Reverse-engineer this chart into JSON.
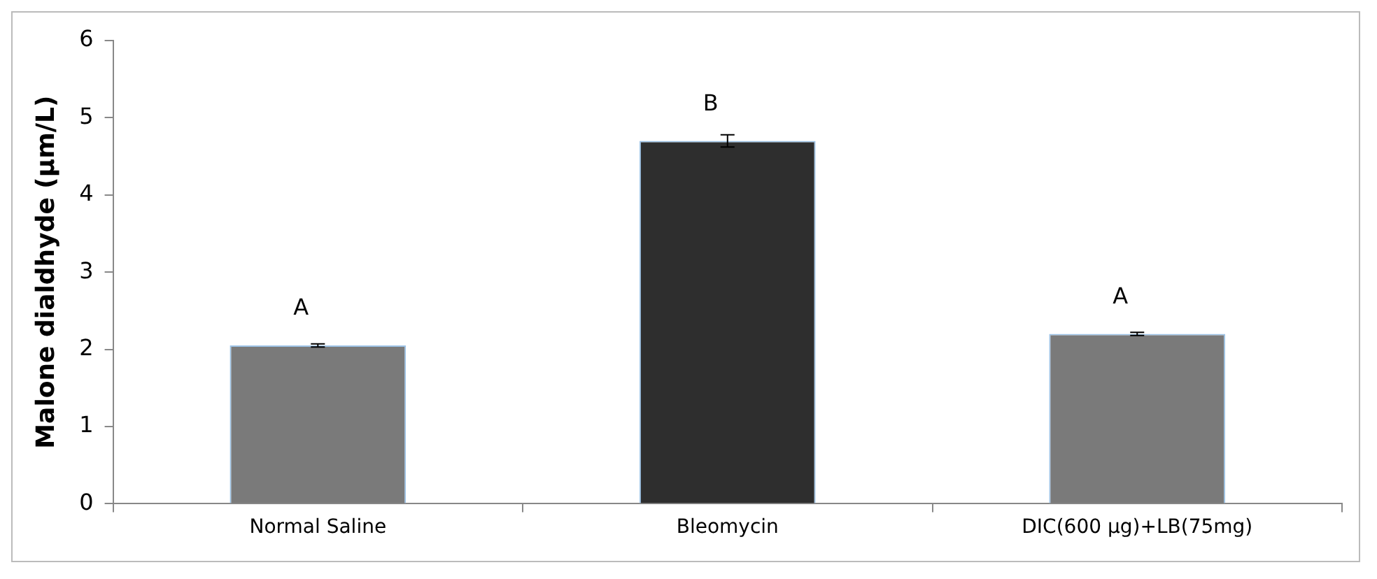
{
  "chart_data": {
    "type": "bar",
    "ylabel": "Malone dialdhyde (µm/L)",
    "categories": [
      "Normal Saline",
      "Bleomycin",
      "DIC(600 µg)+LB(75mg)"
    ],
    "values": [
      2.05,
      4.7,
      2.2
    ],
    "colors": [
      "#7a7a7a",
      "#2e2e2e",
      "#7a7a7a"
    ],
    "errors": [
      0.02,
      0.08,
      0.02
    ],
    "ylim": [
      0,
      6
    ],
    "yticks": [
      0,
      1,
      2,
      3,
      4,
      5,
      6
    ],
    "grid": false,
    "annotations": [
      {
        "text": "A",
        "x": "Normal Saline",
        "y": 2.05
      },
      {
        "text": "B",
        "x": "Bleomycin",
        "y": 4.7
      },
      {
        "text": "A",
        "x": "DIC(600 µg)+LB(75mg)",
        "y": 2.2
      }
    ]
  }
}
